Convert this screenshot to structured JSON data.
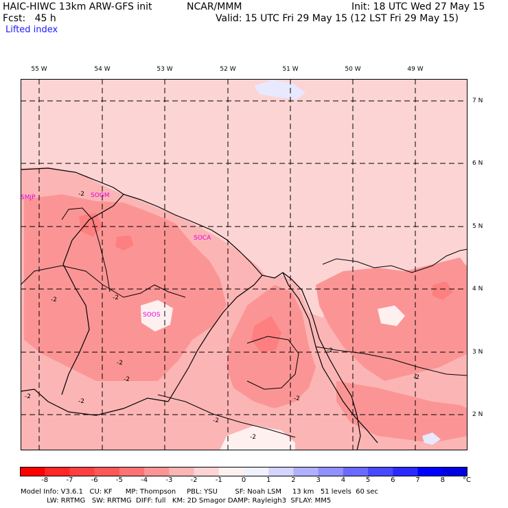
{
  "header": {
    "model": "HAIC-HIWC 13km ARW-GFS init",
    "org": "NCAR/MMM",
    "init": "Init: 18 UTC Wed 27 May 15",
    "fcst": "Fcst:   45 h",
    "valid": "Valid: 15 UTC Fri 29 May 15 (12 LST Fri 29 May 15)",
    "field": "Lifted index"
  },
  "lon_labels": [
    "55 W",
    "54 W",
    "53 W",
    "52 W",
    "51 W",
    "50 W",
    "49 W"
  ],
  "lat_labels": [
    "7 N",
    "6 N",
    "5 N",
    "4 N",
    "3 N",
    "2 N"
  ],
  "stations": [
    "SMJP",
    "SOGM",
    "SOCA",
    "SOOS"
  ],
  "contour_label": "-2",
  "colorbar": {
    "ticks": [
      "-8",
      "-7",
      "-6",
      "-5",
      "-4",
      "-3",
      "-2",
      "-1",
      "0",
      "1",
      "2",
      "3",
      "4",
      "5",
      "6",
      "7",
      "8"
    ],
    "unit": "°C",
    "colors": [
      "#ff0000",
      "#fe2626",
      "#fe4040",
      "#fd5757",
      "#fc7373",
      "#fb9595",
      "#fcb5b5",
      "#fdd4d4",
      "#fff0f0",
      "#f0f0ff",
      "#d4d4fe",
      "#b0b0fe",
      "#9090fe",
      "#6a6afe",
      "#4848fe",
      "#2a2afe",
      "#0000ff",
      "#0000e0"
    ]
  },
  "footer": {
    "line1": "Model Info: V3.6.1   CU: KF      MP: Thompson     PBL: YSU        SF: Noah LSM     13 km   51 levels  60 sec",
    "line2": "            LW: RRTMG   SW: RRTMG  DIFF: full   KM: 2D Smagor DAMP: Rayleigh3  SFLAY: MM5"
  }
}
